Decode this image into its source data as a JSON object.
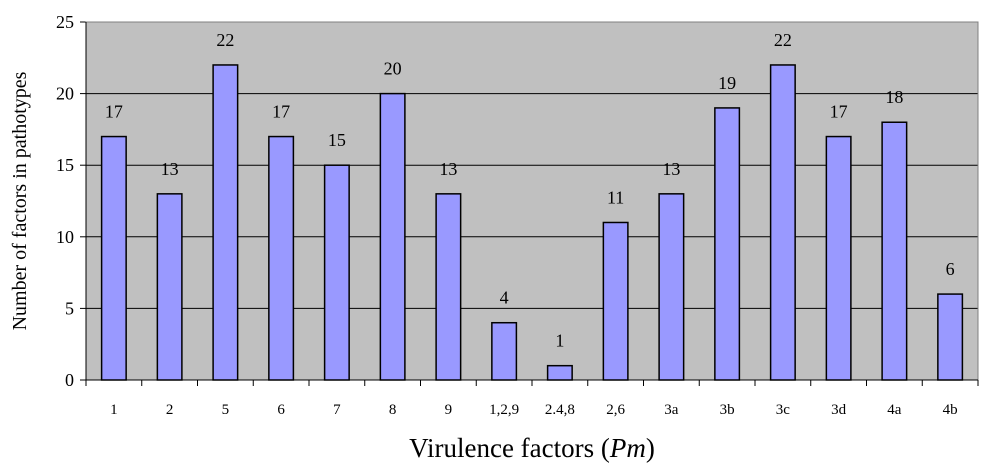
{
  "chart_data": {
    "type": "bar",
    "xlabel": "Virulence factors (Pm)",
    "xlabel_parts": {
      "prefix": "Virulence factors (",
      "italic": "Pm",
      "suffix": ")"
    },
    "ylabel": "Number of factors in pathotypes",
    "ylim": [
      0,
      25
    ],
    "yticks": [
      0,
      5,
      10,
      15,
      20,
      25
    ],
    "grid": true,
    "legend": false,
    "categories": [
      "1",
      "2",
      "5",
      "6",
      "7",
      "8",
      "9",
      "1,2,9",
      "2.4,8",
      "2,6",
      "3a",
      "3b",
      "3c",
      "3d",
      "4a",
      "4b"
    ],
    "values": [
      17,
      13,
      22,
      17,
      15,
      20,
      13,
      4,
      1,
      11,
      13,
      19,
      22,
      17,
      18,
      6
    ],
    "data_labels": [
      "17",
      "13",
      "22",
      "17",
      "15",
      "20",
      "13",
      "4",
      "1",
      "11",
      "13",
      "19",
      "22",
      "17",
      "18",
      "6"
    ],
    "colors": {
      "plot_bg": "#c0c0c0",
      "bar_fill": "#9999ff",
      "bar_stroke": "#000000",
      "gridline": "#000000"
    }
  }
}
